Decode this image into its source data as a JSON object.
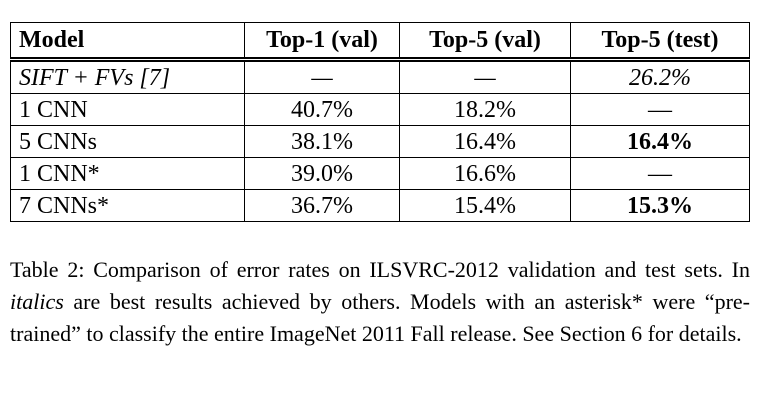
{
  "table": {
    "header": [
      "Model",
      "Top-1 (val)",
      "Top-5 (val)",
      "Top-5 (test)"
    ],
    "rows": [
      [
        "SIFT + FVs [7]",
        "—",
        "—",
        "26.2%"
      ],
      [
        "1 CNN",
        "40.7%",
        "18.2%",
        "—"
      ],
      [
        "5 CNNs",
        "38.1%",
        "16.4%",
        "16.4%"
      ],
      [
        "1 CNN*",
        "39.0%",
        "16.6%",
        "—"
      ],
      [
        "7 CNNs*",
        "36.7%",
        "15.4%",
        "15.3%"
      ]
    ],
    "italic_rows": [
      0
    ],
    "bold_cells": [
      [
        2,
        3
      ],
      [
        4,
        3
      ]
    ]
  },
  "caption": {
    "label": "Table 2:",
    "text_before": "Comparison of error rates on ILSVRC-2012 validation and test sets. In",
    "italic": "italics",
    "text_after": "are best results achieved by others. Models with an asterisk* were “pre-trained” to classify the entire ImageNet 2011 Fall release. See Section 6 for details."
  }
}
